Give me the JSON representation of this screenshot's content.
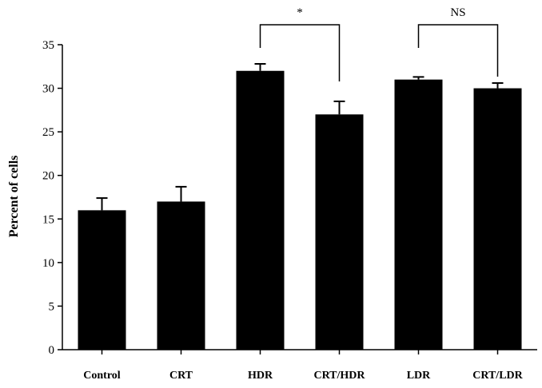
{
  "chart_data": {
    "type": "bar",
    "categories": [
      "Control",
      "CRT",
      "HDR",
      "CRT/HDR",
      "LDR",
      "CRT/LDR"
    ],
    "values": [
      16,
      17,
      32,
      27,
      31,
      30
    ],
    "errors": [
      1.4,
      1.7,
      0.8,
      1.5,
      0.3,
      0.6
    ],
    "title": "",
    "xlabel": "",
    "ylabel": "Percent of cells",
    "ylim": [
      0,
      35
    ],
    "yticks": [
      0,
      5,
      10,
      15,
      20,
      25,
      30,
      35
    ],
    "bar_color": "#000000",
    "grid": false,
    "comparisons": [
      {
        "from": "HDR",
        "to": "CRT/HDR",
        "label": "*"
      },
      {
        "from": "LDR",
        "to": "CRT/LDR",
        "label": "NS"
      }
    ]
  }
}
